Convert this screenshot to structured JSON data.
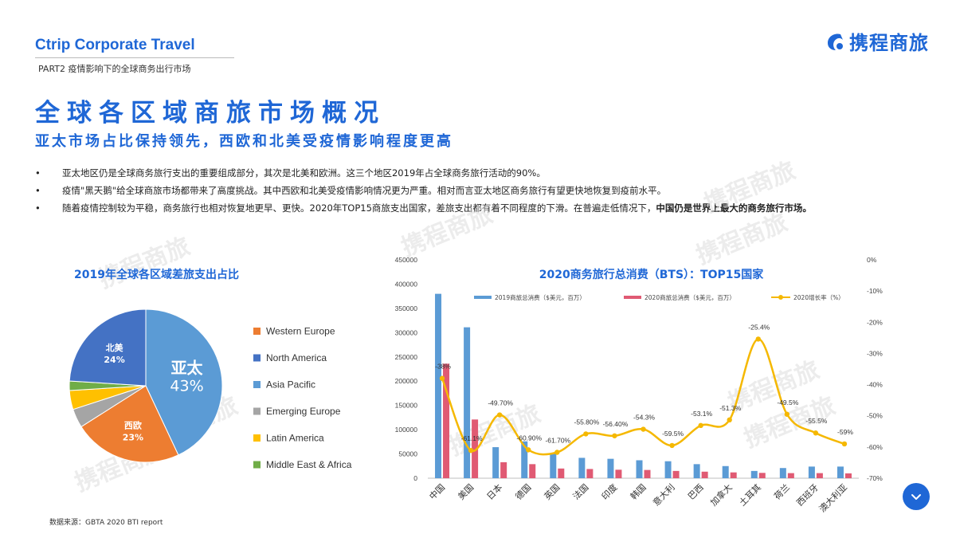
{
  "header": {
    "brand_en": "Ctrip Corporate Travel",
    "part_label": "PART2 疫情影响下的全球商务出行市场",
    "logo_text": "携程商旅"
  },
  "title": "全球各区域商旅市场概况",
  "subtitle": "亚太市场占比保持领先，西欧和北美受疫情影响程度更高",
  "bullets": [
    {
      "marker": "•",
      "text": "亚太地区仍是全球商务旅行支出的重要组成部分，其次是北美和欧洲。这三个地区2019年占全球商务旅行活动的90%。",
      "bold": ""
    },
    {
      "marker": "•",
      "text": "疫情\"黑天鹅\"给全球商旅市场都带来了高度挑战。其中西欧和北美受疫情影响情况更为严重。相对而言亚太地区商务旅行有望更快地恢复到疫前水平。",
      "bold": ""
    },
    {
      "marker": "•",
      "text": "随着疫情控制较为平稳，商务旅行也相对恢复地更早、更快。2020年TOP15商旅支出国家，差旅支出都有着不同程度的下滑。在普遍走低情况下，",
      "bold": "中国仍是世界上最大的商务旅行市场。"
    }
  ],
  "watermark_text": "携程商旅",
  "source": "数据来源：GBTA 2020 BTI report",
  "colors": {
    "brand": "#1f67d6",
    "western_europe": "#ed7d31",
    "north_america": "#4472c4",
    "asia_pacific": "#5b9bd5",
    "emerging_europe": "#a5a5a5",
    "latin_america": "#ffc000",
    "middle_east_africa": "#70ad47",
    "bar2019": "#5b9bd5",
    "bar2020": "#e05a73",
    "growth_line": "#f5b800"
  },
  "scroll_button_icon": "chevron-down-icon",
  "chart_data": [
    {
      "type": "pie",
      "title": "2019年全球各区域差旅支出占比",
      "slices": [
        {
          "name": "Asia Pacific",
          "value": 43,
          "label": "亚太",
          "label_value": "43%",
          "color": "#5b9bd5"
        },
        {
          "name": "Western Europe",
          "value": 23,
          "label": "西欧",
          "label_value": "23%",
          "color": "#ed7d31"
        },
        {
          "name": "Emerging Europe",
          "value": 4,
          "label": "",
          "label_value": "",
          "color": "#a5a5a5"
        },
        {
          "name": "Latin America",
          "value": 4,
          "label": "",
          "label_value": "",
          "color": "#ffc000"
        },
        {
          "name": "Middle East & Africa",
          "value": 2,
          "label": "",
          "label_value": "",
          "color": "#70ad47"
        },
        {
          "name": "North America",
          "value": 24,
          "label": "北美",
          "label_value": "24%",
          "color": "#4472c4"
        }
      ],
      "legend": [
        "Western Europe",
        "North America",
        "Asia Pacific",
        "Emerging Europe",
        "Latin America",
        "Middle East & Africa"
      ],
      "legend_placement": "right"
    },
    {
      "type": "bar",
      "title": "2020商务旅行总消费（BTS）：TOP15国家",
      "categories": [
        "中国",
        "美国",
        "日本",
        "德国",
        "英国",
        "法国",
        "印度",
        "韩国",
        "意大利",
        "巴西",
        "加拿大",
        "土耳其",
        "荷兰",
        "西班牙",
        "澳大利亚"
      ],
      "series": [
        {
          "name": "2019商旅总消费（$美元，百万）",
          "kind": "bar",
          "axis": "left",
          "values": [
            380000,
            311000,
            64000,
            76000,
            52000,
            42000,
            40000,
            37000,
            35000,
            29000,
            25000,
            15000,
            21000,
            24000,
            24000
          ]
        },
        {
          "name": "2020商旅总消费（$美元，百万）",
          "kind": "bar",
          "axis": "left",
          "values": [
            236000,
            121000,
            33000,
            29000,
            20000,
            19000,
            17500,
            17000,
            15000,
            13500,
            12000,
            11000,
            10500,
            10500,
            10000
          ]
        },
        {
          "name": "2020增长率（%）",
          "kind": "line",
          "axis": "right",
          "values": [
            -38,
            -61.1,
            -49.7,
            -60.9,
            -61.7,
            -55.8,
            -56.4,
            -54.3,
            -59.5,
            -53.1,
            -51.3,
            -25.4,
            -49.5,
            -55.5,
            -59
          ],
          "labels": [
            "-38%",
            "-61.1%",
            "-49.70%",
            "-60.90%",
            "-61.70%",
            "-55.80%",
            "-56.40%",
            "-54.3%",
            "-59.5%",
            "-53.1%",
            "-51.3%",
            "-25.4%",
            "-49.5%",
            "-55.5%",
            "-59%"
          ]
        }
      ],
      "y_left": {
        "min": 0,
        "max": 450000,
        "ticks": [
          "0",
          "50000",
          "100000",
          "150000",
          "200000",
          "250000",
          "300000",
          "350000",
          "400000",
          "450000"
        ]
      },
      "y_right": {
        "min": -70,
        "max": 0,
        "ticks": [
          "0%",
          "-10%",
          "-20%",
          "-30%",
          "-40%",
          "-50%",
          "-60%",
          "-70%"
        ]
      },
      "grid": false,
      "legend_placement": "top"
    }
  ]
}
